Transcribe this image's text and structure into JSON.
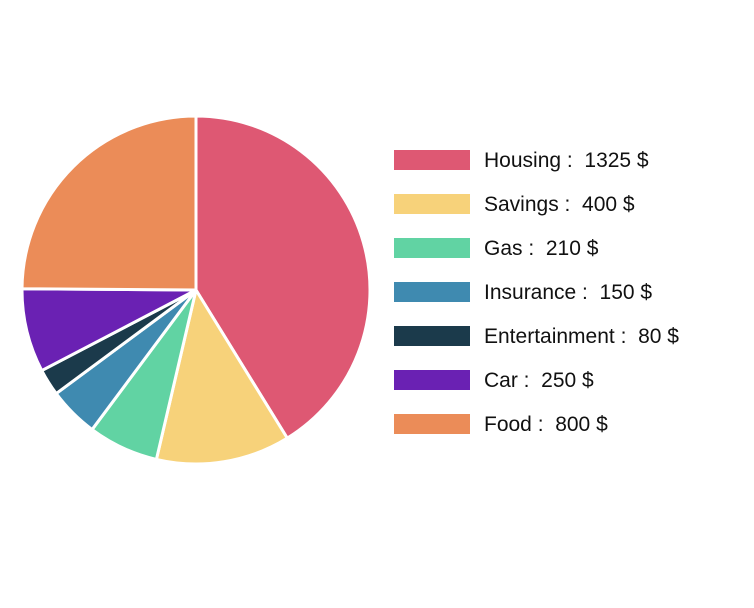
{
  "chart_data": {
    "type": "pie",
    "currency_suffix": "$",
    "slices": [
      {
        "label": "Housing",
        "value": 1325,
        "color": "#DE5873"
      },
      {
        "label": "Savings",
        "value": 400,
        "color": "#F7D27A"
      },
      {
        "label": "Gas",
        "value": 210,
        "color": "#61D3A3"
      },
      {
        "label": "Insurance",
        "value": 150,
        "color": "#3F8AB0"
      },
      {
        "label": "Entertainment",
        "value": 80,
        "color": "#1B3A4B"
      },
      {
        "label": "Car",
        "value": 250,
        "color": "#6A21B3"
      },
      {
        "label": "Food",
        "value": 800,
        "color": "#EB8C58"
      }
    ],
    "legend_position": "right"
  }
}
